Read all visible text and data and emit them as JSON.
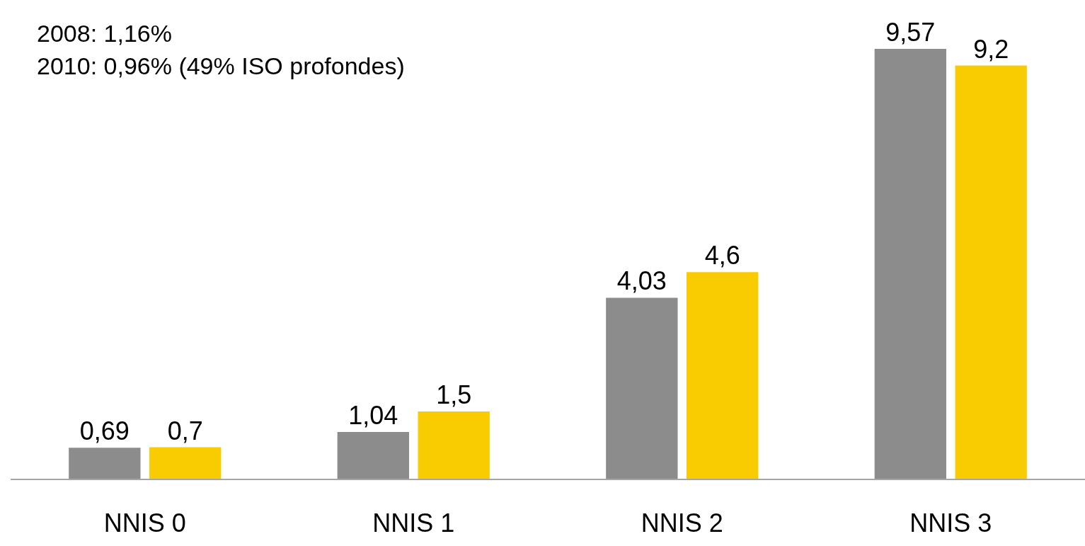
{
  "chart_data": {
    "type": "bar",
    "categories": [
      "NNIS 0",
      "NNIS 1",
      "NNIS 2",
      "NNIS 3"
    ],
    "series": [
      {
        "color": "#8c8c8c",
        "values": [
          0.69,
          1.04,
          4.03,
          9.57
        ],
        "value_labels": [
          "0,69",
          "1,04",
          "4,03",
          "9,57"
        ]
      },
      {
        "color": "#f8cc00",
        "values": [
          0.7,
          1.5,
          4.6,
          9.2
        ],
        "value_labels": [
          "0,7",
          "1,5",
          "4,6",
          "9,2"
        ]
      }
    ],
    "annotations": [
      "2008: 1,16%",
      "2010: 0,96% (49% ISO profondes)"
    ],
    "tick_labels": "x"
  }
}
